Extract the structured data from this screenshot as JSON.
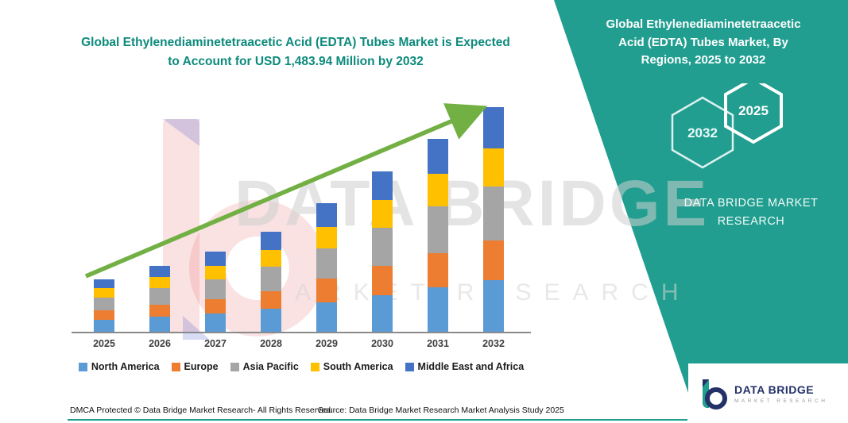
{
  "page": {
    "headline": "Global Ethylenediaminetetraacetic Acid (EDTA) Tubes Market is Expected to Account for USD 1,483.94 Million by 2032",
    "footer": {
      "dmca": "DMCA Protected © Data Bridge Market Research-  All Rights Reserved.",
      "source": "Source: Data Bridge Market Research  Market Analysis Study 2025"
    }
  },
  "side_panel": {
    "title": "Global Ethylenediaminetetraacetic Acid (EDTA) Tubes Market, By Regions, 2025 to 2032",
    "hexagons": [
      "2032",
      "2025"
    ],
    "brand": "DATA BRIDGE MARKET RESEARCH",
    "accent_color": "#219E90"
  },
  "watermark": {
    "line1": "DATA BRIDGE",
    "line2": "MARKET RESEARCH"
  },
  "logo": {
    "name": "DATA BRIDGE",
    "subtitle": "MARKET RESEARCH"
  },
  "chart_data": {
    "type": "bar",
    "stacked": true,
    "title": "Global Ethylenediaminetetraacetic Acid (EDTA) Tubes Market, By Regions, 2025 to 2032",
    "categories": [
      "2025",
      "2026",
      "2027",
      "2028",
      "2029",
      "2030",
      "2031",
      "2032"
    ],
    "series": [
      {
        "name": "North America",
        "color": "#5B9BD5",
        "values": [
          15,
          19,
          23,
          29,
          37,
          46,
          55,
          64
        ]
      },
      {
        "name": "Europe",
        "color": "#ED7D31",
        "values": [
          12,
          15,
          18,
          22,
          29,
          36,
          43,
          50
        ]
      },
      {
        "name": "Asia Pacific",
        "color": "#A5A5A5",
        "values": [
          16,
          20,
          24,
          30,
          38,
          48,
          58,
          67
        ]
      },
      {
        "name": "South America",
        "color": "#FFC000",
        "values": [
          11,
          14,
          17,
          21,
          27,
          34,
          41,
          48
        ]
      },
      {
        "name": "Middle East and Africa",
        "color": "#4472C4",
        "values": [
          11,
          14,
          18,
          23,
          29,
          36,
          43,
          51
        ]
      }
    ],
    "units": "relative height (y-axis unlabeled in figure)",
    "xlabel": "",
    "ylabel": "",
    "grid": false,
    "legend_position": "bottom",
    "trend_arrow": {
      "present": true,
      "color": "#72B043",
      "direction": "up-right"
    }
  }
}
